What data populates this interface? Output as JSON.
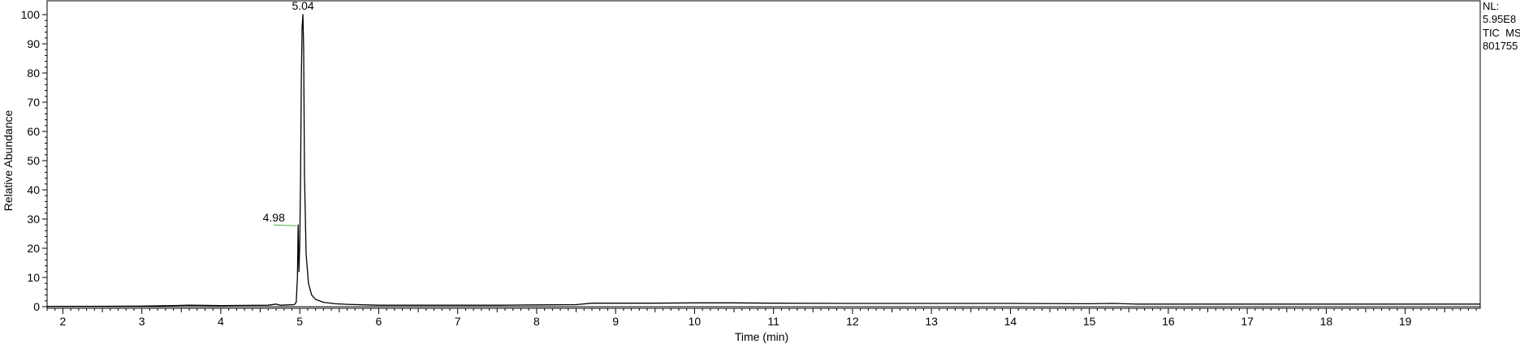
{
  "info": {
    "nl_label": "NL:",
    "nl_value": "5.95E8",
    "trace": "TIC  MS",
    "file_id": "801755"
  },
  "chart_data": {
    "type": "line",
    "xlabel": "Time (min)",
    "ylabel": "Relative Abundance",
    "xlim": [
      1.8,
      19.95
    ],
    "ylim": [
      0,
      100
    ],
    "xticks": [
      2,
      3,
      4,
      5,
      6,
      7,
      8,
      9,
      10,
      11,
      12,
      13,
      14,
      15,
      16,
      17,
      18,
      19
    ],
    "yticks": [
      0,
      10,
      20,
      30,
      40,
      50,
      60,
      70,
      80,
      90,
      100
    ],
    "grid": false,
    "series": [
      {
        "color": "#000000",
        "x": [
          1.8,
          2.5,
          3.0,
          3.4,
          3.6,
          4.0,
          4.3,
          4.6,
          4.7,
          4.72,
          4.76,
          4.85,
          4.93,
          4.955,
          4.97,
          4.98,
          4.99,
          5.0,
          5.01,
          5.02,
          5.03,
          5.04,
          5.05,
          5.06,
          5.08,
          5.11,
          5.15,
          5.2,
          5.3,
          5.45,
          5.6,
          6.0,
          6.5,
          7.0,
          7.5,
          8.0,
          8.5,
          8.7,
          9.0,
          9.5,
          10.0,
          10.5,
          11.0,
          12.0,
          13.0,
          14.0,
          15.0,
          15.3,
          15.6,
          16.0,
          17.0,
          18.0,
          19.0,
          19.95
        ],
        "y": [
          0.1,
          0.15,
          0.2,
          0.4,
          0.5,
          0.4,
          0.45,
          0.5,
          0.9,
          0.7,
          0.5,
          0.6,
          0.7,
          1.5,
          10,
          28,
          12,
          22,
          45,
          78,
          96,
          100,
          88,
          45,
          18,
          8,
          4,
          2.5,
          1.5,
          1.0,
          0.8,
          0.5,
          0.5,
          0.5,
          0.5,
          0.6,
          0.7,
          1.2,
          1.2,
          1.2,
          1.3,
          1.3,
          1.2,
          1.1,
          1.1,
          1.1,
          1.0,
          1.1,
          0.9,
          0.9,
          0.9,
          0.9,
          0.9,
          0.9
        ]
      }
    ],
    "annotations": [
      {
        "label": "5.04",
        "x": 5.04,
        "y": 100
      },
      {
        "label": "4.98",
        "x": 4.98,
        "y": 28
      }
    ]
  }
}
